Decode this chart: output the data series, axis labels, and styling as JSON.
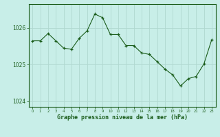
{
  "x": [
    0,
    1,
    2,
    3,
    4,
    5,
    6,
    7,
    8,
    9,
    10,
    11,
    12,
    13,
    14,
    15,
    16,
    17,
    18,
    19,
    20,
    21,
    22,
    23
  ],
  "y": [
    1025.65,
    1025.65,
    1025.85,
    1025.65,
    1025.45,
    1025.42,
    1025.72,
    1025.92,
    1026.38,
    1026.28,
    1025.82,
    1025.82,
    1025.52,
    1025.52,
    1025.32,
    1025.28,
    1025.08,
    1024.88,
    1024.72,
    1024.42,
    1024.62,
    1024.68,
    1025.02,
    1025.68
  ],
  "line_color": "#1a5c1a",
  "marker_color": "#1a5c1a",
  "bg_color": "#c8eee8",
  "grid_color": "#b0d8d0",
  "xlabel": "Graphe pression niveau de la mer (hPa)",
  "xlabel_color": "#1a5c1a",
  "tick_color": "#1a5c1a",
  "label_color": "#1a5c1a",
  "ylim": [
    1023.85,
    1026.65
  ],
  "yticks": [
    1024,
    1025,
    1026
  ],
  "xlim": [
    -0.5,
    23.5
  ],
  "xticks": [
    0,
    1,
    2,
    3,
    4,
    5,
    6,
    7,
    8,
    9,
    10,
    11,
    12,
    13,
    14,
    15,
    16,
    17,
    18,
    19,
    20,
    21,
    22,
    23
  ]
}
